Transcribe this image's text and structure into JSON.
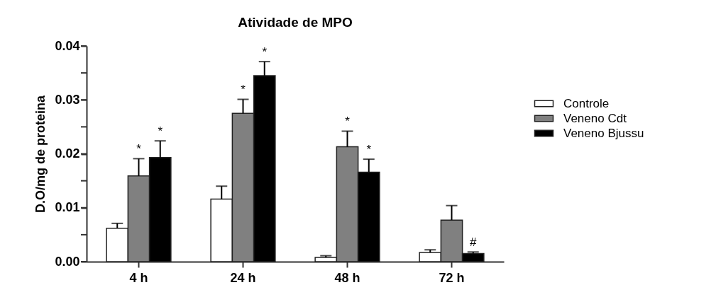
{
  "chart_data": {
    "type": "bar",
    "title": "Atividade de MPO",
    "ylabel": "D.O/mg de proteina",
    "categories": [
      "4 h",
      "24 h",
      "48 h",
      "72 h"
    ],
    "series": [
      {
        "name": "Controle",
        "color": "#ffffff",
        "values": [
          0.0062,
          0.0116,
          0.0008,
          0.0017
        ],
        "errors": [
          [
            0.0062,
            0.0071
          ],
          [
            0.0116,
            0.014
          ],
          [
            0.0008,
            0.0011
          ],
          [
            0.0017,
            0.0022
          ]
        ]
      },
      {
        "name": "Veneno Cdt",
        "color": "#808080",
        "values": [
          0.0159,
          0.0275,
          0.0213,
          0.0077
        ],
        "errors": [
          [
            0.0159,
            0.0191
          ],
          [
            0.0275,
            0.0301
          ],
          [
            0.0213,
            0.0242
          ],
          [
            0.0077,
            0.0104
          ]
        ],
        "value_labels": [
          "*",
          "*",
          "*",
          null
        ]
      },
      {
        "name": "Veneno Bjussu",
        "color": "#000000",
        "values": [
          0.0193,
          0.0345,
          0.0166,
          0.0015
        ],
        "errors": [
          [
            0.0193,
            0.0224
          ],
          [
            0.0345,
            0.0371
          ],
          [
            0.0166,
            0.019
          ],
          [
            0.0015,
            0.0018
          ]
        ],
        "value_labels": [
          "*",
          "*",
          "*",
          "#"
        ]
      }
    ],
    "ylim": [
      0,
      0.04
    ],
    "yticks": [
      {
        "value": 0,
        "label": "0.00"
      },
      {
        "value": 0.005,
        "label": null
      },
      {
        "value": 0.01,
        "label": "0.01"
      },
      {
        "value": 0.015,
        "label": null
      },
      {
        "value": 0.02,
        "label": "0.02"
      },
      {
        "value": 0.025,
        "label": null
      },
      {
        "value": 0.03,
        "label": "0.03"
      },
      {
        "value": 0.035,
        "label": null
      },
      {
        "value": 0.04,
        "label": "0.04"
      }
    ],
    "grid": false,
    "legend": "right"
  }
}
